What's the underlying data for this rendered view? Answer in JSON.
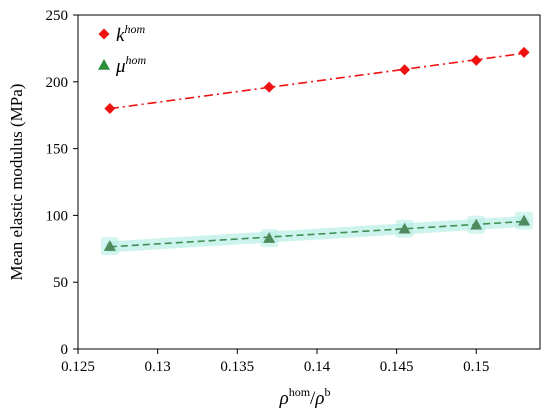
{
  "chart_data": {
    "type": "scatter",
    "xlabel": {
      "main": "ρ",
      "sup1": "hom",
      "sep": "/",
      "main2": "ρ",
      "sup2": "b"
    },
    "ylabel": "Mean elastic modulus  (MPa)",
    "xlim": [
      0.125,
      0.154
    ],
    "ylim": [
      0,
      250
    ],
    "xticks": [
      0.125,
      0.13,
      0.135,
      0.14,
      0.145,
      0.15
    ],
    "xtick_labels": [
      "0.125",
      "0.13",
      "0.135",
      "0.14",
      "0.145",
      "0.15"
    ],
    "yticks": [
      0,
      50,
      100,
      150,
      200,
      250
    ],
    "ytick_labels": [
      "0",
      "50",
      "100",
      "150",
      "200",
      "250"
    ],
    "grid": false,
    "legend_position": "top-left",
    "series": [
      {
        "name": "k",
        "name_sup": "hom",
        "marker": "diamond",
        "color": "#ee1111",
        "line_style": "dash-dot",
        "x": [
          0.127,
          0.137,
          0.1455,
          0.15,
          0.153
        ],
        "y": [
          180,
          196,
          209,
          216,
          222
        ]
      },
      {
        "name": "μ",
        "name_sup": "hom",
        "marker": "triangle",
        "color": "#2c8f3c",
        "marker_color": "#4e8a5c",
        "line_color": "#3f8f55",
        "line_style": "dashed",
        "error_band_color": "#b9efe6",
        "x": [
          0.127,
          0.137,
          0.1455,
          0.15,
          0.153
        ],
        "y": [
          77,
          83,
          90,
          93,
          96
        ]
      }
    ]
  }
}
